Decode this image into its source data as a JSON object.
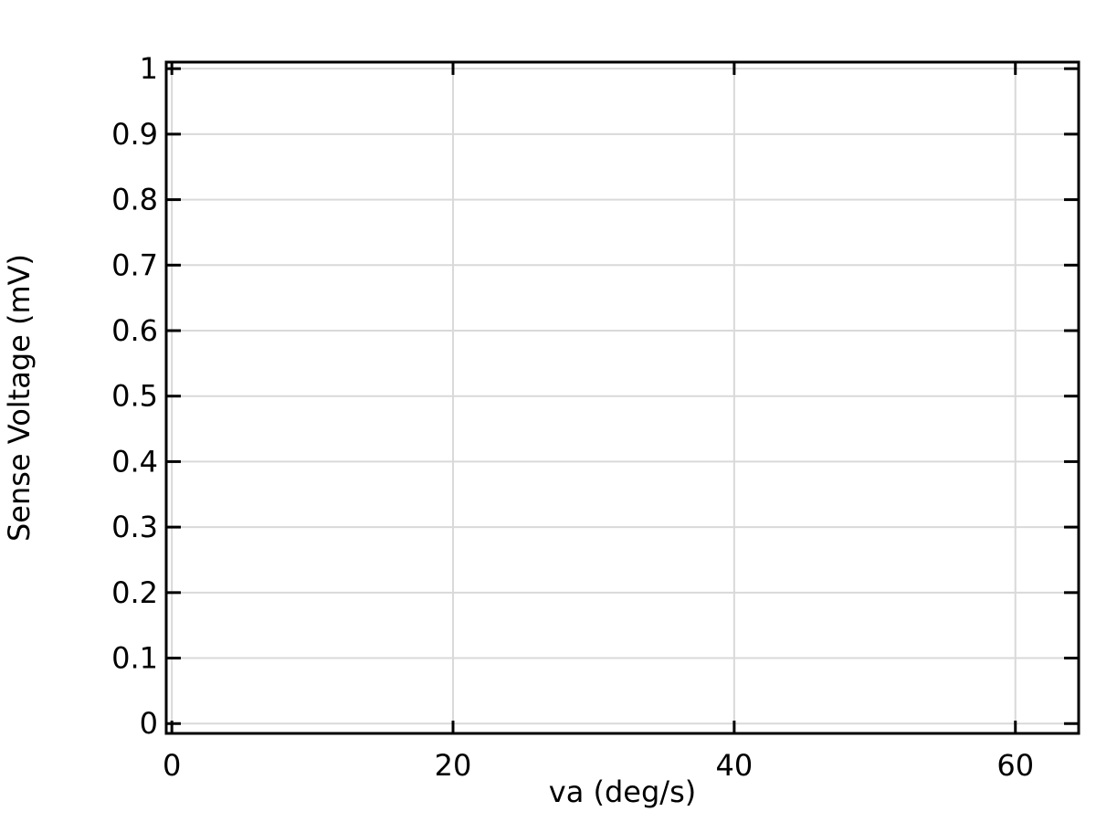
{
  "chart_data": {
    "type": "line",
    "title": "",
    "xlabel": "va (deg/s)",
    "ylabel": "Sense Voltage (mV)",
    "xlim": [
      -0.4,
      64.5
    ],
    "ylim": [
      -0.015,
      1.01
    ],
    "x_ticks": [
      0,
      20,
      40,
      60
    ],
    "x_tick_labels": [
      "0",
      "20",
      "40",
      "60"
    ],
    "y_ticks": [
      0,
      0.1,
      0.2,
      0.3,
      0.4,
      0.5,
      0.6,
      0.7,
      0.8,
      0.9,
      1
    ],
    "y_tick_labels": [
      "0",
      "0.1",
      "0.2",
      "0.3",
      "0.4",
      "0.5",
      "0.6",
      "0.7",
      "0.8",
      "0.9",
      "1"
    ],
    "grid": true,
    "series": [],
    "colors": {
      "axis": "#000000",
      "grid": "#d9d9d9",
      "background": "#ffffff"
    }
  }
}
